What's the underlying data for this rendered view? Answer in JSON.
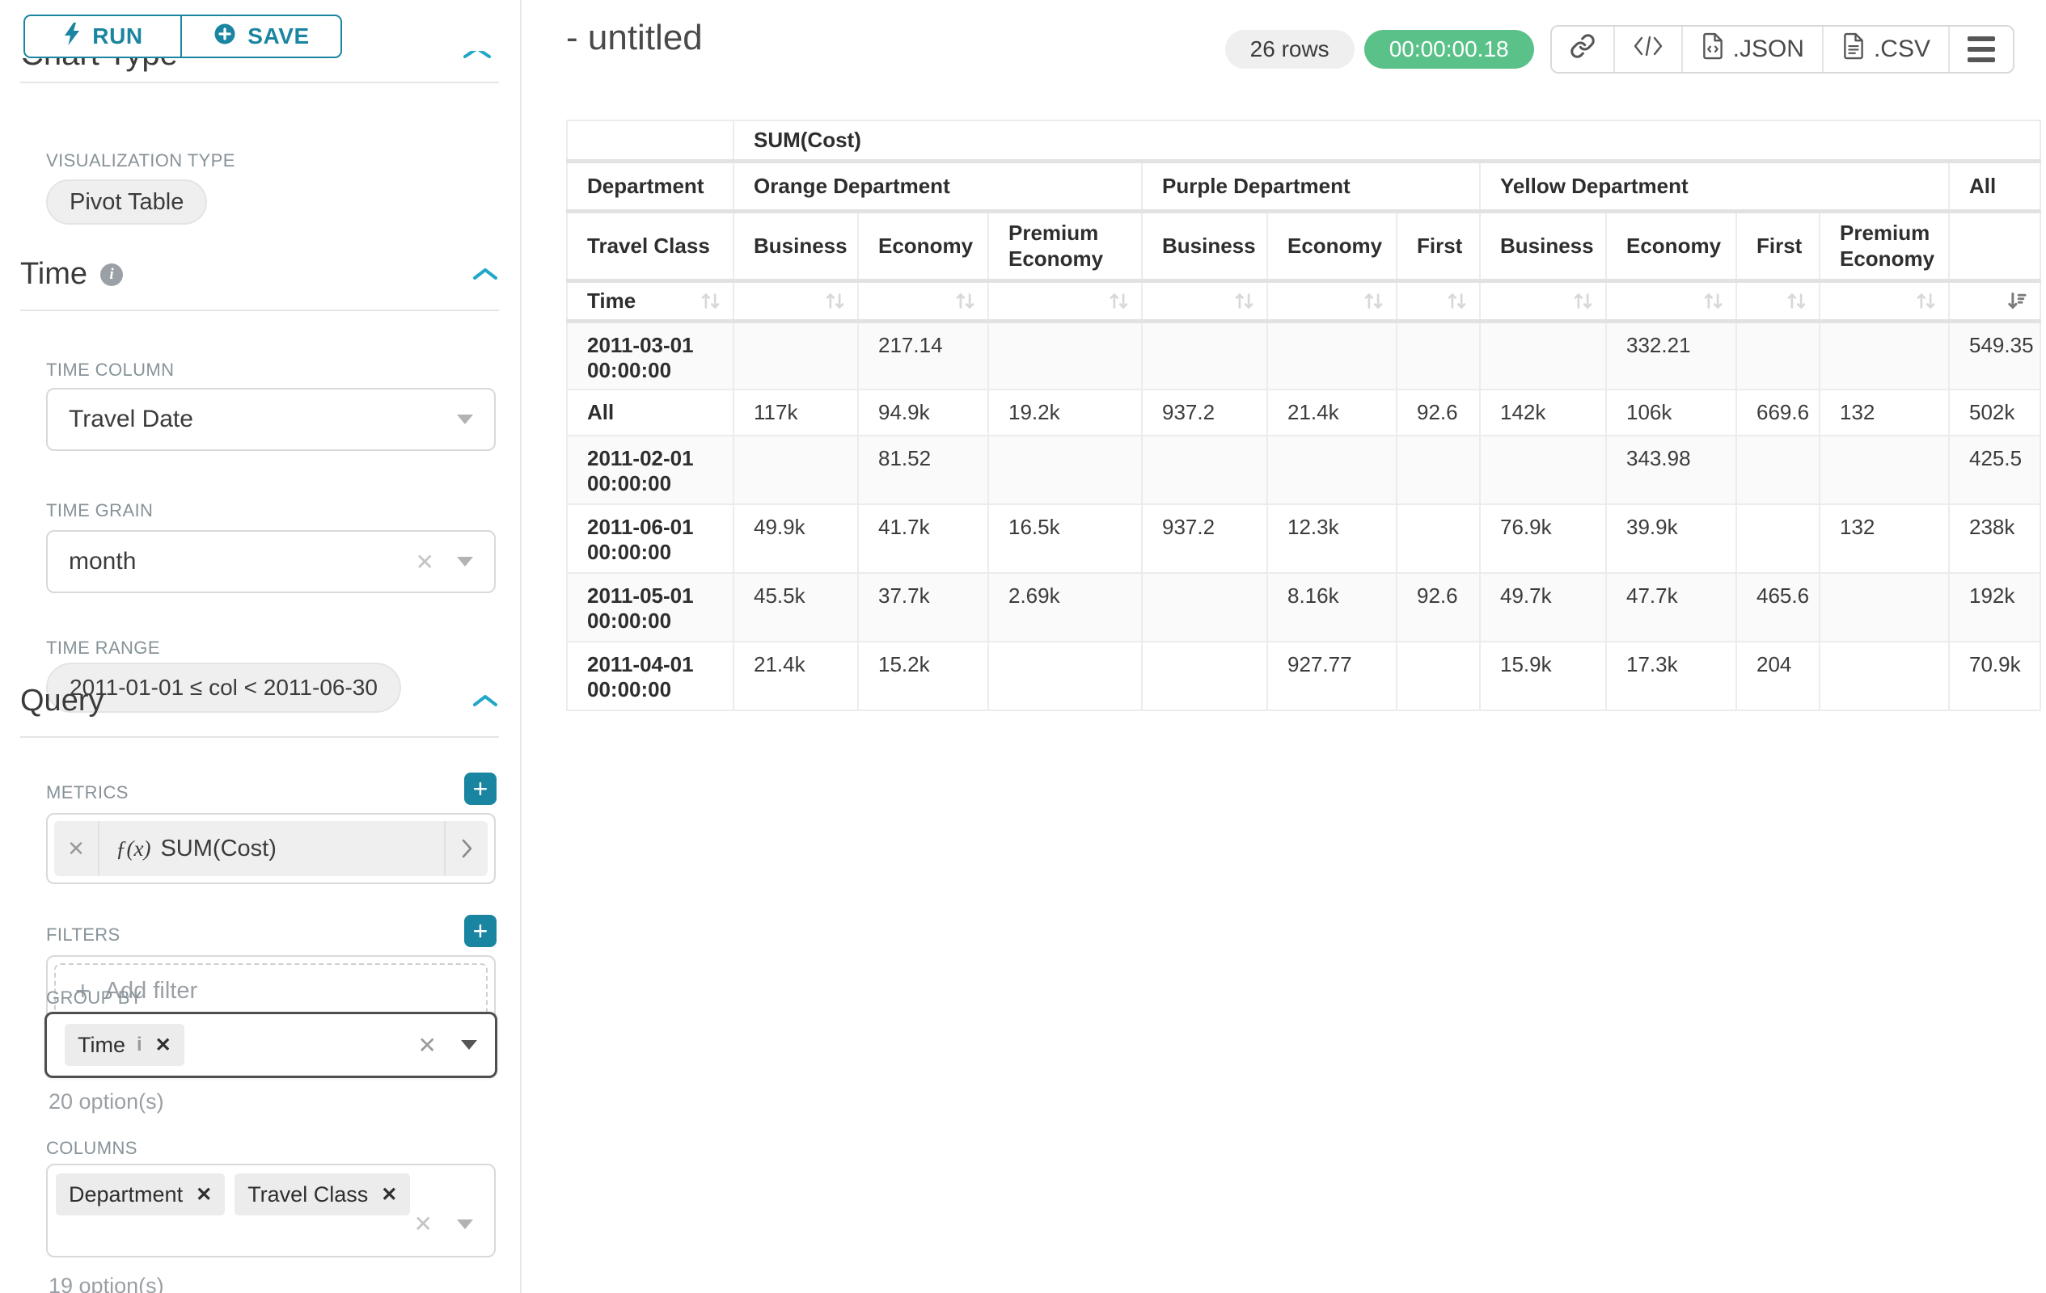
{
  "colors": {
    "primary": "#1a85a0",
    "accent": "#20a7c9",
    "success": "#5ac189"
  },
  "sidebar": {
    "run_label": "RUN",
    "save_label": "SAVE",
    "chart_type_heading": "Chart Type",
    "viz_type_label": "VISUALIZATION TYPE",
    "viz_type_value": "Pivot Table",
    "time": {
      "title": "Time",
      "column_label": "TIME COLUMN",
      "column_value": "Travel Date",
      "grain_label": "TIME GRAIN",
      "grain_value": "month",
      "range_label": "TIME RANGE",
      "range_value": "2011-01-01 ≤ col < 2011-06-30"
    },
    "query": {
      "title": "Query",
      "metrics_label": "METRICS",
      "metric_fx": "ƒ(x)",
      "metric_name": "SUM(Cost)",
      "filters_label": "FILTERS",
      "add_filter_label": "Add filter",
      "group_by_label": "GROUP BY",
      "group_by_tags": [
        "Time"
      ],
      "group_by_options": "20 option(s)",
      "columns_label": "COLUMNS",
      "columns_tags": [
        "Department",
        "Travel Class"
      ],
      "columns_options": "19 option(s)"
    }
  },
  "main": {
    "title": "- untitled",
    "rows_badge": "26 rows",
    "timer_badge": "00:00:00.18",
    "export_json_label": ".JSON",
    "export_csv_label": ".CSV"
  },
  "table": {
    "metric_header": "SUM(Cost)",
    "row_dims": [
      "Department",
      "Travel Class",
      "Time"
    ],
    "groups": [
      {
        "label": "Orange Department",
        "cols": [
          "Business",
          "Economy",
          "Premium Economy"
        ]
      },
      {
        "label": "Purple Department",
        "cols": [
          "Business",
          "Economy",
          "First"
        ]
      },
      {
        "label": "Yellow Department",
        "cols": [
          "Business",
          "Economy",
          "First",
          "Premium Economy"
        ]
      },
      {
        "label": "All",
        "cols": [
          ""
        ]
      }
    ],
    "rows": [
      {
        "label": "2011-03-01 00:00:00",
        "values": [
          "",
          "217.14",
          "",
          "",
          "",
          "",
          "",
          "332.21",
          "",
          "",
          "549.35"
        ]
      },
      {
        "label": "All",
        "values": [
          "117k",
          "94.9k",
          "19.2k",
          "937.2",
          "21.4k",
          "92.6",
          "142k",
          "106k",
          "669.6",
          "132",
          "502k"
        ]
      },
      {
        "label": "2011-02-01 00:00:00",
        "values": [
          "",
          "81.52",
          "",
          "",
          "",
          "",
          "",
          "343.98",
          "",
          "",
          "425.5"
        ]
      },
      {
        "label": "2011-06-01 00:00:00",
        "values": [
          "49.9k",
          "41.7k",
          "16.5k",
          "937.2",
          "12.3k",
          "",
          "76.9k",
          "39.9k",
          "",
          "132",
          "238k"
        ]
      },
      {
        "label": "2011-05-01 00:00:00",
        "values": [
          "45.5k",
          "37.7k",
          "2.69k",
          "",
          "8.16k",
          "92.6",
          "49.7k",
          "47.7k",
          "465.6",
          "",
          "192k"
        ]
      },
      {
        "label": "2011-04-01 00:00:00",
        "values": [
          "21.4k",
          "15.2k",
          "",
          "",
          "927.77",
          "",
          "15.9k",
          "17.3k",
          "204",
          "",
          "70.9k"
        ]
      }
    ]
  }
}
